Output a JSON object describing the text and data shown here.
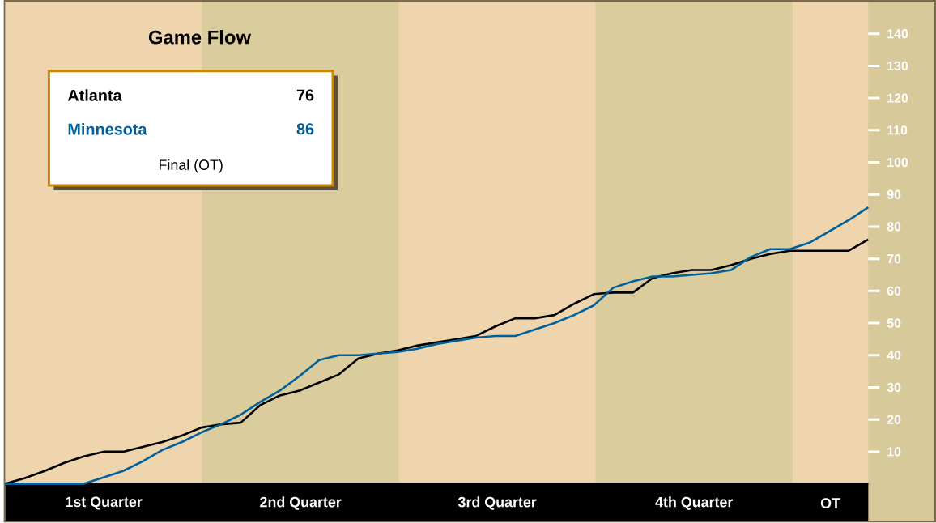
{
  "chart_data": {
    "type": "line",
    "title": "Game Flow",
    "categories": [
      null,
      null,
      null,
      null,
      null,
      null,
      null,
      null,
      null,
      null,
      null,
      null,
      null,
      null,
      null,
      null,
      null,
      null,
      null,
      null,
      null,
      null,
      null,
      null,
      null,
      null,
      null,
      null,
      null,
      null,
      null,
      null,
      null,
      null,
      null,
      null,
      null,
      null,
      null,
      null,
      null,
      null,
      null,
      null,
      null
    ],
    "ylim": [
      0,
      150
    ],
    "yticks": [
      10,
      20,
      30,
      40,
      50,
      60,
      70,
      80,
      90,
      100,
      110,
      120,
      130,
      140
    ],
    "tick_labels": "y",
    "marker": "none",
    "line_style": "solid",
    "series": [
      {
        "name": "Atlanta",
        "color": "#000000",
        "values": [
          0,
          1.8,
          4,
          6.5,
          8.5,
          10,
          10,
          11.5,
          13,
          15,
          17.5,
          18.5,
          19,
          24.5,
          27.5,
          29,
          31.5,
          34,
          39,
          40.5,
          41.5,
          43,
          44,
          45,
          46,
          49,
          51.5,
          51.5,
          52.5,
          56,
          59,
          59.5,
          59.5,
          64,
          65.5,
          66.5,
          66.5,
          68,
          70,
          71.5,
          72.5,
          72.5,
          72.5,
          72.5,
          76
        ]
      },
      {
        "name": "Minnesota",
        "color": "#00609c",
        "values": [
          0,
          0,
          0,
          0,
          0,
          2,
          4,
          7,
          10.5,
          13,
          16,
          18.5,
          21.5,
          25.5,
          29,
          33.5,
          38.5,
          40,
          40,
          40.5,
          41,
          42,
          43.5,
          44.5,
          45.5,
          46,
          46,
          48,
          50,
          52.5,
          55.5,
          61,
          63,
          64.5,
          64.5,
          65,
          65.5,
          66.5,
          70.5,
          73,
          73,
          75,
          78.5,
          82,
          86
        ]
      }
    ],
    "annotations": [
      "76",
      "86",
      "Final (OT)",
      "1st Quarter",
      "2nd Quarter",
      "3rd Quarter",
      "4th Quarter",
      "OT"
    ]
  }
}
